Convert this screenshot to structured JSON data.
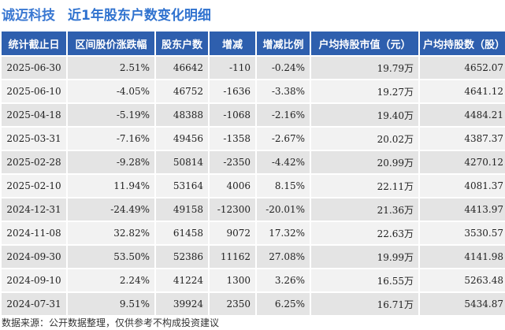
{
  "header": {
    "company": "诚迈科技",
    "subtitle": "近1年股东户数变化明细"
  },
  "table": {
    "columns": [
      "统计截止日",
      "区间股价涨跌幅",
      "股东户数",
      "增减",
      "增减比例",
      "户均持股市值（元）",
      "户均持股数（股）"
    ],
    "rows": [
      {
        "date": "2025-06-30",
        "price_change": "2.51%",
        "price_dir": "pos",
        "holders": "46642",
        "delta": "-110",
        "delta_dir": "neg",
        "ratio": "-0.24%",
        "ratio_dir": "neg",
        "value": "19.79",
        "value_unit": "万",
        "shares": "4652.07"
      },
      {
        "date": "2025-06-10",
        "price_change": "-4.05%",
        "price_dir": "neg",
        "holders": "46752",
        "delta": "-1636",
        "delta_dir": "neg",
        "ratio": "-3.38%",
        "ratio_dir": "neg",
        "value": "19.27",
        "value_unit": "万",
        "shares": "4641.12"
      },
      {
        "date": "2025-04-18",
        "price_change": "-5.19%",
        "price_dir": "neg",
        "holders": "48388",
        "delta": "-1068",
        "delta_dir": "neg",
        "ratio": "-2.16%",
        "ratio_dir": "neg",
        "value": "19.40",
        "value_unit": "万",
        "shares": "4484.21"
      },
      {
        "date": "2025-03-31",
        "price_change": "-7.16%",
        "price_dir": "neg",
        "holders": "49456",
        "delta": "-1358",
        "delta_dir": "neg",
        "ratio": "-2.67%",
        "ratio_dir": "neg",
        "value": "20.02",
        "value_unit": "万",
        "shares": "4387.37"
      },
      {
        "date": "2025-02-28",
        "price_change": "-9.28%",
        "price_dir": "neg",
        "holders": "50814",
        "delta": "-2350",
        "delta_dir": "neg",
        "ratio": "-4.42%",
        "ratio_dir": "neg",
        "value": "20.99",
        "value_unit": "万",
        "shares": "4270.12"
      },
      {
        "date": "2025-02-10",
        "price_change": "11.94%",
        "price_dir": "pos",
        "holders": "53164",
        "delta": "4006",
        "delta_dir": "pos",
        "ratio": "8.15%",
        "ratio_dir": "pos",
        "value": "22.11",
        "value_unit": "万",
        "shares": "4081.37"
      },
      {
        "date": "2024-12-31",
        "price_change": "-24.49%",
        "price_dir": "neg",
        "holders": "49158",
        "delta": "-12300",
        "delta_dir": "neg",
        "ratio": "-20.01%",
        "ratio_dir": "neg",
        "value": "21.36",
        "value_unit": "万",
        "shares": "4413.97"
      },
      {
        "date": "2024-11-08",
        "price_change": "32.82%",
        "price_dir": "pos",
        "holders": "61458",
        "delta": "9072",
        "delta_dir": "pos",
        "ratio": "17.32%",
        "ratio_dir": "pos",
        "value": "22.63",
        "value_unit": "万",
        "shares": "3530.57"
      },
      {
        "date": "2024-09-30",
        "price_change": "53.50%",
        "price_dir": "pos",
        "holders": "52386",
        "delta": "11162",
        "delta_dir": "pos",
        "ratio": "27.08%",
        "ratio_dir": "pos",
        "value": "19.99",
        "value_unit": "万",
        "shares": "4141.98"
      },
      {
        "date": "2024-09-10",
        "price_change": "2.24%",
        "price_dir": "pos",
        "holders": "41224",
        "delta": "1300",
        "delta_dir": "pos",
        "ratio": "3.26%",
        "ratio_dir": "pos",
        "value": "16.55",
        "value_unit": "万",
        "shares": "5263.48"
      },
      {
        "date": "2024-07-31",
        "price_change": "9.51%",
        "price_dir": "pos",
        "holders": "39924",
        "delta": "2350",
        "delta_dir": "pos",
        "ratio": "6.25%",
        "ratio_dir": "pos",
        "value": "16.71",
        "value_unit": "万",
        "shares": "5434.87"
      }
    ]
  },
  "footer": {
    "source": "数据来源：公开数据整理，仅供参考不构成投资建议"
  },
  "colors": {
    "header_bg": "#2e5fae",
    "positive": "#e0201b",
    "negative": "#1a9a2e",
    "title": "#3a78d2"
  }
}
